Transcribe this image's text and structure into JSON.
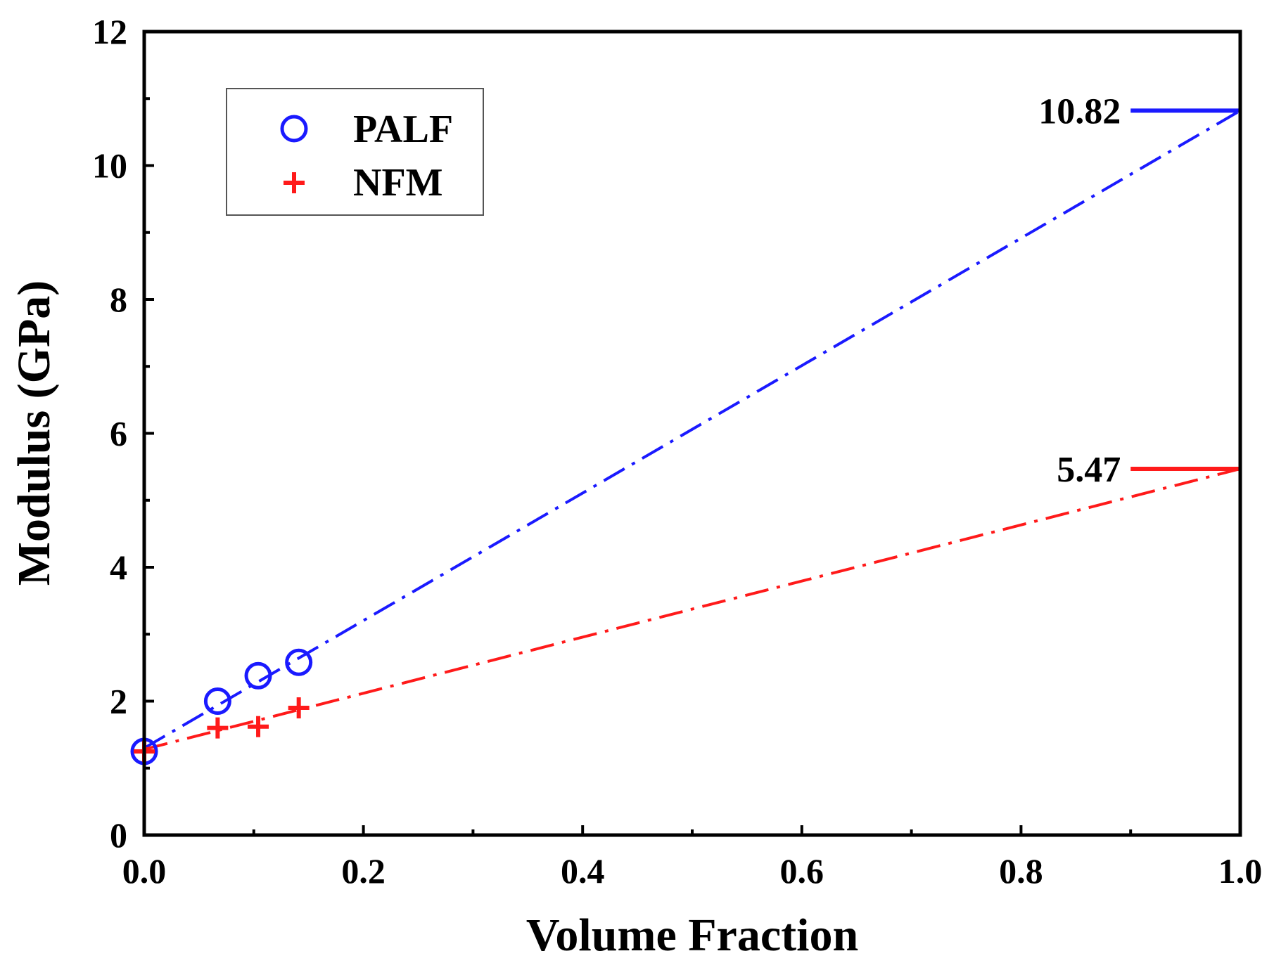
{
  "chart_data": {
    "type": "scatter",
    "title": "",
    "xlabel": "Volume Fraction",
    "ylabel": "Modulus (GPa)",
    "xlim": [
      0.0,
      1.0
    ],
    "ylim": [
      0,
      12
    ],
    "x_ticks": [
      0.0,
      0.2,
      0.4,
      0.6,
      0.8,
      1.0
    ],
    "x_tick_labels": [
      "0.0",
      "0.2",
      "0.4",
      "0.6",
      "0.8",
      "1.0"
    ],
    "x_minor_ticks": [
      0.1,
      0.3,
      0.5,
      0.7,
      0.9
    ],
    "y_ticks": [
      0,
      2,
      4,
      6,
      8,
      10,
      12
    ],
    "y_tick_labels": [
      "0",
      "2",
      "4",
      "6",
      "8",
      "10",
      "12"
    ],
    "y_minor_ticks": [
      1,
      3,
      5,
      7,
      9,
      11
    ],
    "grid": false,
    "legend_position": "top-left",
    "series": [
      {
        "name": "PALF",
        "marker": "circle",
        "color": "#1a1aff",
        "x": [
          0.0,
          0.067,
          0.104,
          0.141
        ],
        "y": [
          1.25,
          2.0,
          2.38,
          2.58
        ],
        "fit_line": {
          "x": [
            0.0,
            1.0
          ],
          "y": [
            1.3,
            10.82
          ],
          "style": "dash-dot"
        },
        "annotation": {
          "label": "10.82",
          "value": 10.82
        }
      },
      {
        "name": "NFM",
        "marker": "plus",
        "color": "#ff1a1a",
        "x": [
          0.0,
          0.067,
          0.104,
          0.141
        ],
        "y": [
          1.25,
          1.6,
          1.62,
          1.9
        ],
        "fit_line": {
          "x": [
            0.0,
            1.0
          ],
          "y": [
            1.28,
            5.47
          ],
          "style": "dash-dot"
        },
        "annotation": {
          "label": "5.47",
          "value": 5.47
        }
      }
    ]
  }
}
